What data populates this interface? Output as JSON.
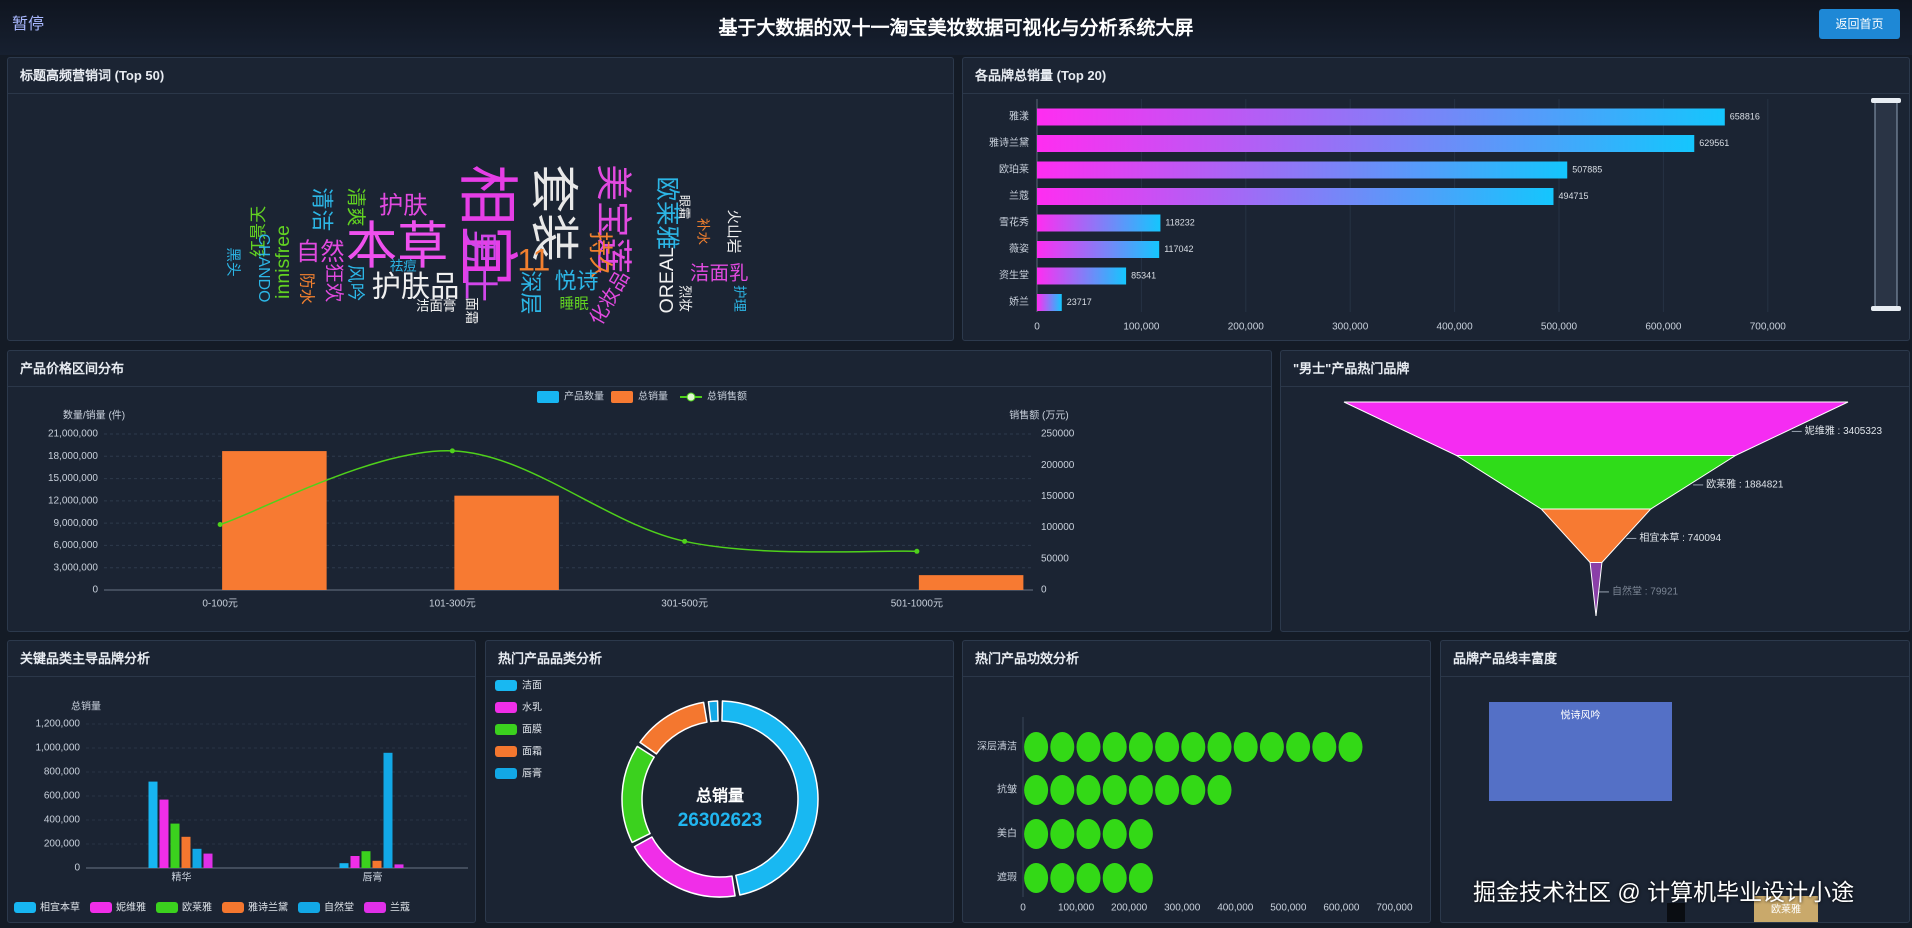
{
  "header": {
    "pause": "暂停",
    "title": "基于大数据的双十一淘宝美妆数据可视化与分析系统大屏",
    "back_button": "返回首页"
  },
  "watermark": "掘金技术社区 @ 计算机毕业设计小途",
  "chart_data": [
    {
      "type": "wordcloud",
      "title": "标题高频营销词 (Top 50)",
      "words": [
        {
          "name": "相宜",
          "value": 500,
          "color": "#e63ee6"
        },
        {
          "name": "本草",
          "value": 420,
          "color": "#ee50ee"
        },
        {
          "name": "套装",
          "value": 400,
          "color": "#e8e8e8"
        },
        {
          "name": "美宝莲",
          "value": 300,
          "color": "#e24ae0"
        },
        {
          "name": "男士",
          "value": 300,
          "color": "#d246ea"
        },
        {
          "name": "11",
          "value": 260,
          "color": "#f2802f"
        },
        {
          "name": "护肤品",
          "value": 240,
          "color": "#f0f0f0"
        },
        {
          "name": "护肤",
          "value": 200,
          "color": "#e24ae0"
        },
        {
          "name": "自然",
          "value": 200,
          "color": "#e24ae0"
        },
        {
          "name": "欧莱雅",
          "value": 200,
          "color": "#2cb6e6"
        },
        {
          "name": "持久",
          "value": 200,
          "color": "#f2802f"
        },
        {
          "name": "清洁",
          "value": 180,
          "color": "#2cb6e6"
        },
        {
          "name": "悦诗",
          "value": 180,
          "color": "#2cb6e6"
        },
        {
          "name": "深层",
          "value": 180,
          "color": "#2cb6e6"
        },
        {
          "name": "清爽",
          "value": 160,
          "color": "#62d222"
        },
        {
          "name": "洁面乳",
          "value": 160,
          "color": "#e24ae0"
        },
        {
          "name": "OREAL",
          "value": 160,
          "color": "#f0f0f0"
        },
        {
          "name": "化妆品",
          "value": 160,
          "color": "#e24ae0"
        },
        {
          "name": "innisfree",
          "value": 160,
          "color": "#62d222"
        },
        {
          "name": "狂欢",
          "value": 160,
          "color": "#e24ae0"
        },
        {
          "name": "风吟",
          "value": 150,
          "color": "#2cb6e6"
        },
        {
          "name": "红景天",
          "value": 140,
          "color": "#62d222"
        },
        {
          "name": "CHANDO",
          "value": 130,
          "color": "#2cb6e6"
        },
        {
          "name": "防水",
          "value": 130,
          "color": "#f2802f"
        },
        {
          "name": "睡眠",
          "value": 120,
          "color": "#62d222"
        },
        {
          "name": "火山岩",
          "value": 120,
          "color": "#f0f0f0"
        },
        {
          "name": "黑头",
          "value": 120,
          "color": "#2cb6e6"
        },
        {
          "name": "祛痘",
          "value": 110,
          "color": "#2cb6e6"
        },
        {
          "name": "洁面膏",
          "value": 110,
          "color": "#f0f0f0"
        },
        {
          "name": "面霜",
          "value": 110,
          "color": "#f0f0f0"
        },
        {
          "name": "烈妆",
          "value": 110,
          "color": "#f0f0f0"
        },
        {
          "name": "补水",
          "value": 110,
          "color": "#f2802f"
        },
        {
          "name": "护理",
          "value": 110,
          "color": "#2cb6e6"
        },
        {
          "name": "眼霜",
          "value": 100,
          "color": "#f0f0f0"
        }
      ]
    },
    {
      "type": "hbar",
      "title": "各品牌总销量 (Top 20)",
      "categories": [
        "雅漾",
        "雅诗兰黛",
        "欧珀莱",
        "兰蔻",
        "雪花秀",
        "薇姿",
        "资生堂",
        "娇兰"
      ],
      "values": [
        658816,
        629561,
        507885,
        494715,
        118232,
        117042,
        85341,
        23717
      ],
      "gradient": [
        "#ff2df1",
        "#14c6fd"
      ],
      "xlim": [
        0,
        750000
      ],
      "xticks": [
        0,
        {
          "value": 100000,
          "label": "100,000"
        },
        {
          "value": 200000,
          "label": "200,000"
        },
        {
          "value": 300000,
          "label": "300,000"
        },
        {
          "value": 400000,
          "label": "400,000"
        },
        {
          "value": 500000,
          "label": "500,000"
        },
        {
          "value": 600000,
          "label": "600,000"
        },
        {
          "value": 700000,
          "label": "700,000"
        }
      ],
      "grid": true
    },
    {
      "type": "bar_line",
      "title": "产品价格区间分布",
      "categories": [
        "0-100元",
        "101-300元",
        "301-500元",
        "501-1000元"
      ],
      "series": [
        {
          "name": "产品数量",
          "type": "bar",
          "color": "#17b6f2",
          "values": [
            0,
            0,
            0,
            0
          ]
        },
        {
          "name": "总销量",
          "type": "bar",
          "color": "#f77a32",
          "values": [
            18700000,
            12700000,
            null,
            2000000
          ]
        },
        {
          "name": "总销售额",
          "type": "line",
          "axis": "y2",
          "color": "#4fd11b",
          "values": [
            105000,
            223000,
            78000,
            62000
          ]
        }
      ],
      "ylabel": "数量/销量 (件)",
      "y2label": "销售额 (万元)",
      "ylim": [
        0,
        21000000
      ],
      "yticks": [
        0,
        {
          "value": 3000000,
          "label": "3,000,000"
        },
        {
          "value": 6000000,
          "label": "6,000,000"
        },
        {
          "value": 9000000,
          "label": "9,000,000"
        },
        {
          "value": 12000000,
          "label": "12,000,000"
        },
        {
          "value": 15000000,
          "label": "15,000,000"
        },
        {
          "value": 18000000,
          "label": "18,000,000"
        },
        {
          "value": 21000000,
          "label": "21,000,000"
        }
      ],
      "y2lim": [
        0,
        250000
      ],
      "y2ticks": [
        0,
        50000,
        100000,
        150000,
        200000,
        250000
      ],
      "grid": true,
      "legend": "top"
    },
    {
      "type": "funnel",
      "title": "\"男士\"产品热门品牌",
      "categories": [
        "妮维雅",
        "欧莱雅",
        "相宜本草",
        "自然堂"
      ],
      "values": [
        3405323,
        1884821,
        740094,
        79921
      ],
      "value_labels": [
        "妮维雅 : 3405323",
        "欧莱雅 : 1884821",
        "相宜本草 : 740094",
        "自然堂 : 79921"
      ],
      "colors": [
        "#f52cf2",
        "#2fdc19",
        "#f77a32",
        "#8a3fa8"
      ]
    },
    {
      "type": "grouped_bar",
      "title": "关键品类主导品牌分析",
      "categories": [
        "精华",
        "唇膏"
      ],
      "series": [
        {
          "name": "相宜本草",
          "color": "#17b6f2",
          "values": [
            720000,
            40000
          ]
        },
        {
          "name": "妮维雅",
          "color": "#f02ee8",
          "values": [
            570000,
            100000
          ]
        },
        {
          "name": "欧莱雅",
          "color": "#3bd11e",
          "values": [
            370000,
            140000
          ]
        },
        {
          "name": "雅诗兰黛",
          "color": "#f4772f",
          "values": [
            260000,
            60000
          ]
        },
        {
          "name": "自然堂",
          "color": "#12a8e6",
          "values": [
            160000,
            960000
          ]
        },
        {
          "name": "兰蔻",
          "color": "#e030e8",
          "values": [
            120000,
            30000
          ]
        }
      ],
      "ylabel": "总销量",
      "ylim": [
        0,
        1200000
      ],
      "yticks": [
        0,
        {
          "value": 200000,
          "label": "200,000"
        },
        {
          "value": 400000,
          "label": "400,000"
        },
        {
          "value": 600000,
          "label": "600,000"
        },
        {
          "value": 800000,
          "label": "800,000"
        },
        {
          "value": 1000000,
          "label": "1,000,000"
        },
        {
          "value": 1200000,
          "label": "1,200,000"
        }
      ],
      "grid": true,
      "legend": "bottom"
    },
    {
      "type": "doughnut",
      "title": "热门产品品类分析",
      "categories": [
        "洁面",
        "水乳",
        "面膜",
        "面霜",
        "唇膏"
      ],
      "values": [
        12400000,
        5300000,
        4500000,
        3500000,
        600000
      ],
      "colors": [
        "#18b8f2",
        "#f02ee8",
        "#3bd11e",
        "#f4772f",
        "#12a8e6"
      ],
      "center_label": "总销量",
      "center_value": 26302623,
      "legend": "top-left"
    },
    {
      "type": "pictorial_bar",
      "title": "热门产品功效分析",
      "categories": [
        "深层清洁",
        "抗皱",
        "美白",
        "遮瑕"
      ],
      "values": [
        640000,
        410000,
        260000,
        260000
      ],
      "color": "#33d916",
      "xlim": [
        0,
        750000
      ],
      "xticks": [
        0,
        {
          "value": 100000,
          "label": "100,000"
        },
        {
          "value": 200000,
          "label": "200,000"
        },
        {
          "value": 300000,
          "label": "300,000"
        },
        {
          "value": 400000,
          "label": "400,000"
        },
        {
          "value": 500000,
          "label": "500,000"
        },
        {
          "value": 600000,
          "label": "600,000"
        },
        {
          "value": 700000,
          "label": "700,000"
        }
      ]
    },
    {
      "type": "treemap",
      "title": "品牌产品线丰富度",
      "items": [
        {
          "name": "悦诗风吟",
          "color": "#5470c6"
        },
        {
          "name": "欧莱雅",
          "color": "#c9a96b"
        }
      ]
    }
  ]
}
